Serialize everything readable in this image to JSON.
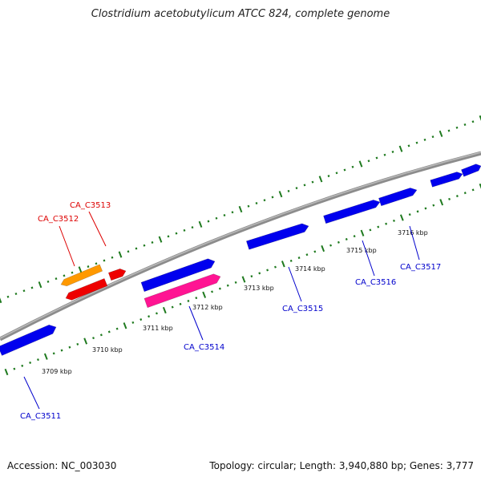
{
  "title": "Clostridium acetobutylicum ATCC 824, complete genome",
  "footer": {
    "accession": "Accession: NC_003030",
    "summary": "Topology: circular; Length: 3,940,880 bp; Genes: 3,777"
  },
  "colors": {
    "tick": "#1f7a1f",
    "backbone": "#8c8c8c",
    "forward_gene": "#0000ee",
    "reverse_gene": "#ee0000",
    "orange_gene": "#ff9900",
    "pink_gene": "#ff1493",
    "label_forward": "#0000cc",
    "label_reverse": "#dd0000"
  },
  "scale_labels": [
    "3709 kbp",
    "3710 kbp",
    "3711 kbp",
    "3712 kbp",
    "3713 kbp",
    "3714 kbp",
    "3715 kbp",
    "3716 kbp"
  ],
  "genes": [
    {
      "id": "CA_C3511",
      "strand": "forward",
      "color": "forward_gene"
    },
    {
      "id": "CA_C3512",
      "strand": "reverse",
      "color": "orange_gene"
    },
    {
      "id": "CA_C3513",
      "strand": "reverse",
      "color": "reverse_gene"
    },
    {
      "id": "CA_C3514",
      "strand": "forward",
      "color": "pink_gene"
    },
    {
      "id": "CA_C3515",
      "strand": "forward",
      "color": "forward_gene"
    },
    {
      "id": "CA_C3516",
      "strand": "forward",
      "color": "forward_gene"
    },
    {
      "id": "CA_C3517",
      "strand": "forward",
      "color": "forward_gene"
    }
  ]
}
